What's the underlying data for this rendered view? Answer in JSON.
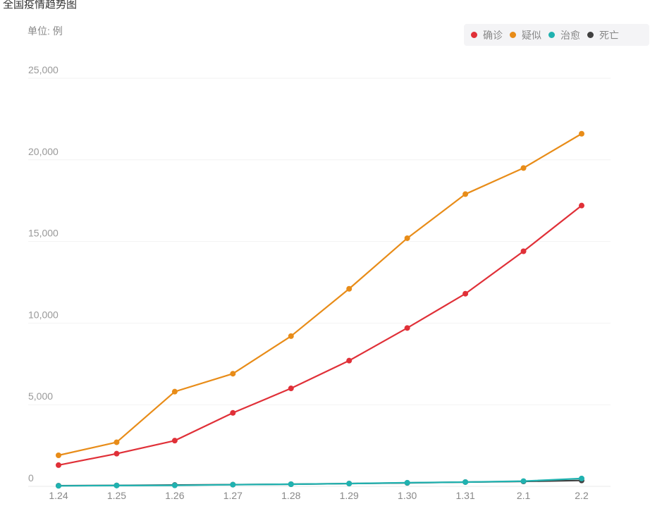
{
  "title": "全国疫情趋势图",
  "unit_label": "单位: 例",
  "colors": {
    "confirmed": "#e03038",
    "suspected": "#e88c18",
    "cured": "#20b2b0",
    "dead": "#404040"
  },
  "chart_data": {
    "type": "line",
    "categories": [
      "1.24",
      "1.25",
      "1.26",
      "1.27",
      "1.28",
      "1.29",
      "1.30",
      "1.31",
      "2.1",
      "2.2"
    ],
    "ylim": [
      0,
      25000
    ],
    "yticks": [
      0,
      5000,
      10000,
      15000,
      20000,
      25000
    ],
    "ytick_labels": [
      "0",
      "5,000",
      "10,000",
      "15,000",
      "20,000",
      "25,000"
    ],
    "grid": true,
    "legend_position": "top-right",
    "series": [
      {
        "name": "确诊",
        "color_key": "confirmed",
        "values": [
          1300,
          2000,
          2800,
          4500,
          6000,
          7700,
          9700,
          11800,
          14400,
          17200
        ]
      },
      {
        "name": "疑似",
        "color_key": "suspected",
        "values": [
          1900,
          2700,
          5800,
          6900,
          9200,
          12100,
          15200,
          17900,
          19500,
          21600
        ]
      },
      {
        "name": "治愈",
        "color_key": "cured",
        "values": [
          30,
          50,
          60,
          100,
          130,
          170,
          220,
          260,
          320,
          480
        ]
      },
      {
        "name": "死亡",
        "color_key": "dead",
        "values": [
          40,
          55,
          80,
          105,
          130,
          170,
          210,
          260,
          300,
          360
        ]
      }
    ]
  }
}
